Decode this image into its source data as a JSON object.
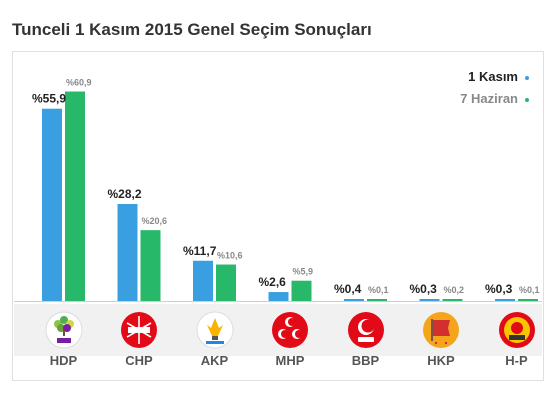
{
  "title": "Tunceli 1 Kasım 2015 Genel Seçim Sonuçları",
  "legend": {
    "current": "1 Kasım",
    "previous": "7 Haziran"
  },
  "colors": {
    "current": "#3a9fe0",
    "previous": "#27b86a"
  },
  "parties": [
    {
      "name": "HDP",
      "current_label": "%55,9",
      "previous_label": "%60,9",
      "logo": "hdp-tree-logo"
    },
    {
      "name": "CHP",
      "current_label": "%28,2",
      "previous_label": "%20,6",
      "logo": "chp-six-arrows-logo"
    },
    {
      "name": "AKP",
      "current_label": "%11,7",
      "previous_label": "%10,6",
      "logo": "akp-lightbulb-logo"
    },
    {
      "name": "MHP",
      "current_label": "%2,6",
      "previous_label": "%5,9",
      "logo": "mhp-three-crescents-logo"
    },
    {
      "name": "BBP",
      "current_label": "%0,4",
      "previous_label": "%0,1",
      "logo": "bbp-logo"
    },
    {
      "name": "HKP",
      "current_label": "%0,3",
      "previous_label": "%0,2",
      "logo": "hkp-flag-logo"
    },
    {
      "name": "H-P",
      "current_label": "%0,3",
      "previous_label": "%0,1",
      "logo": "halk-party-logo"
    }
  ],
  "chart_data": {
    "type": "bar",
    "categories": [
      "HDP",
      "CHP",
      "AKP",
      "MHP",
      "BBP",
      "HKP",
      "H-P"
    ],
    "series": [
      {
        "name": "1 Kasım",
        "values": [
          55.9,
          28.2,
          11.7,
          2.6,
          0.4,
          0.3,
          0.3
        ]
      },
      {
        "name": "7 Haziran",
        "values": [
          60.9,
          20.6,
          10.6,
          5.9,
          0.1,
          0.2,
          0.1
        ]
      }
    ],
    "ylim": [
      0,
      65
    ],
    "grid": false,
    "legend_position": "top-right"
  }
}
